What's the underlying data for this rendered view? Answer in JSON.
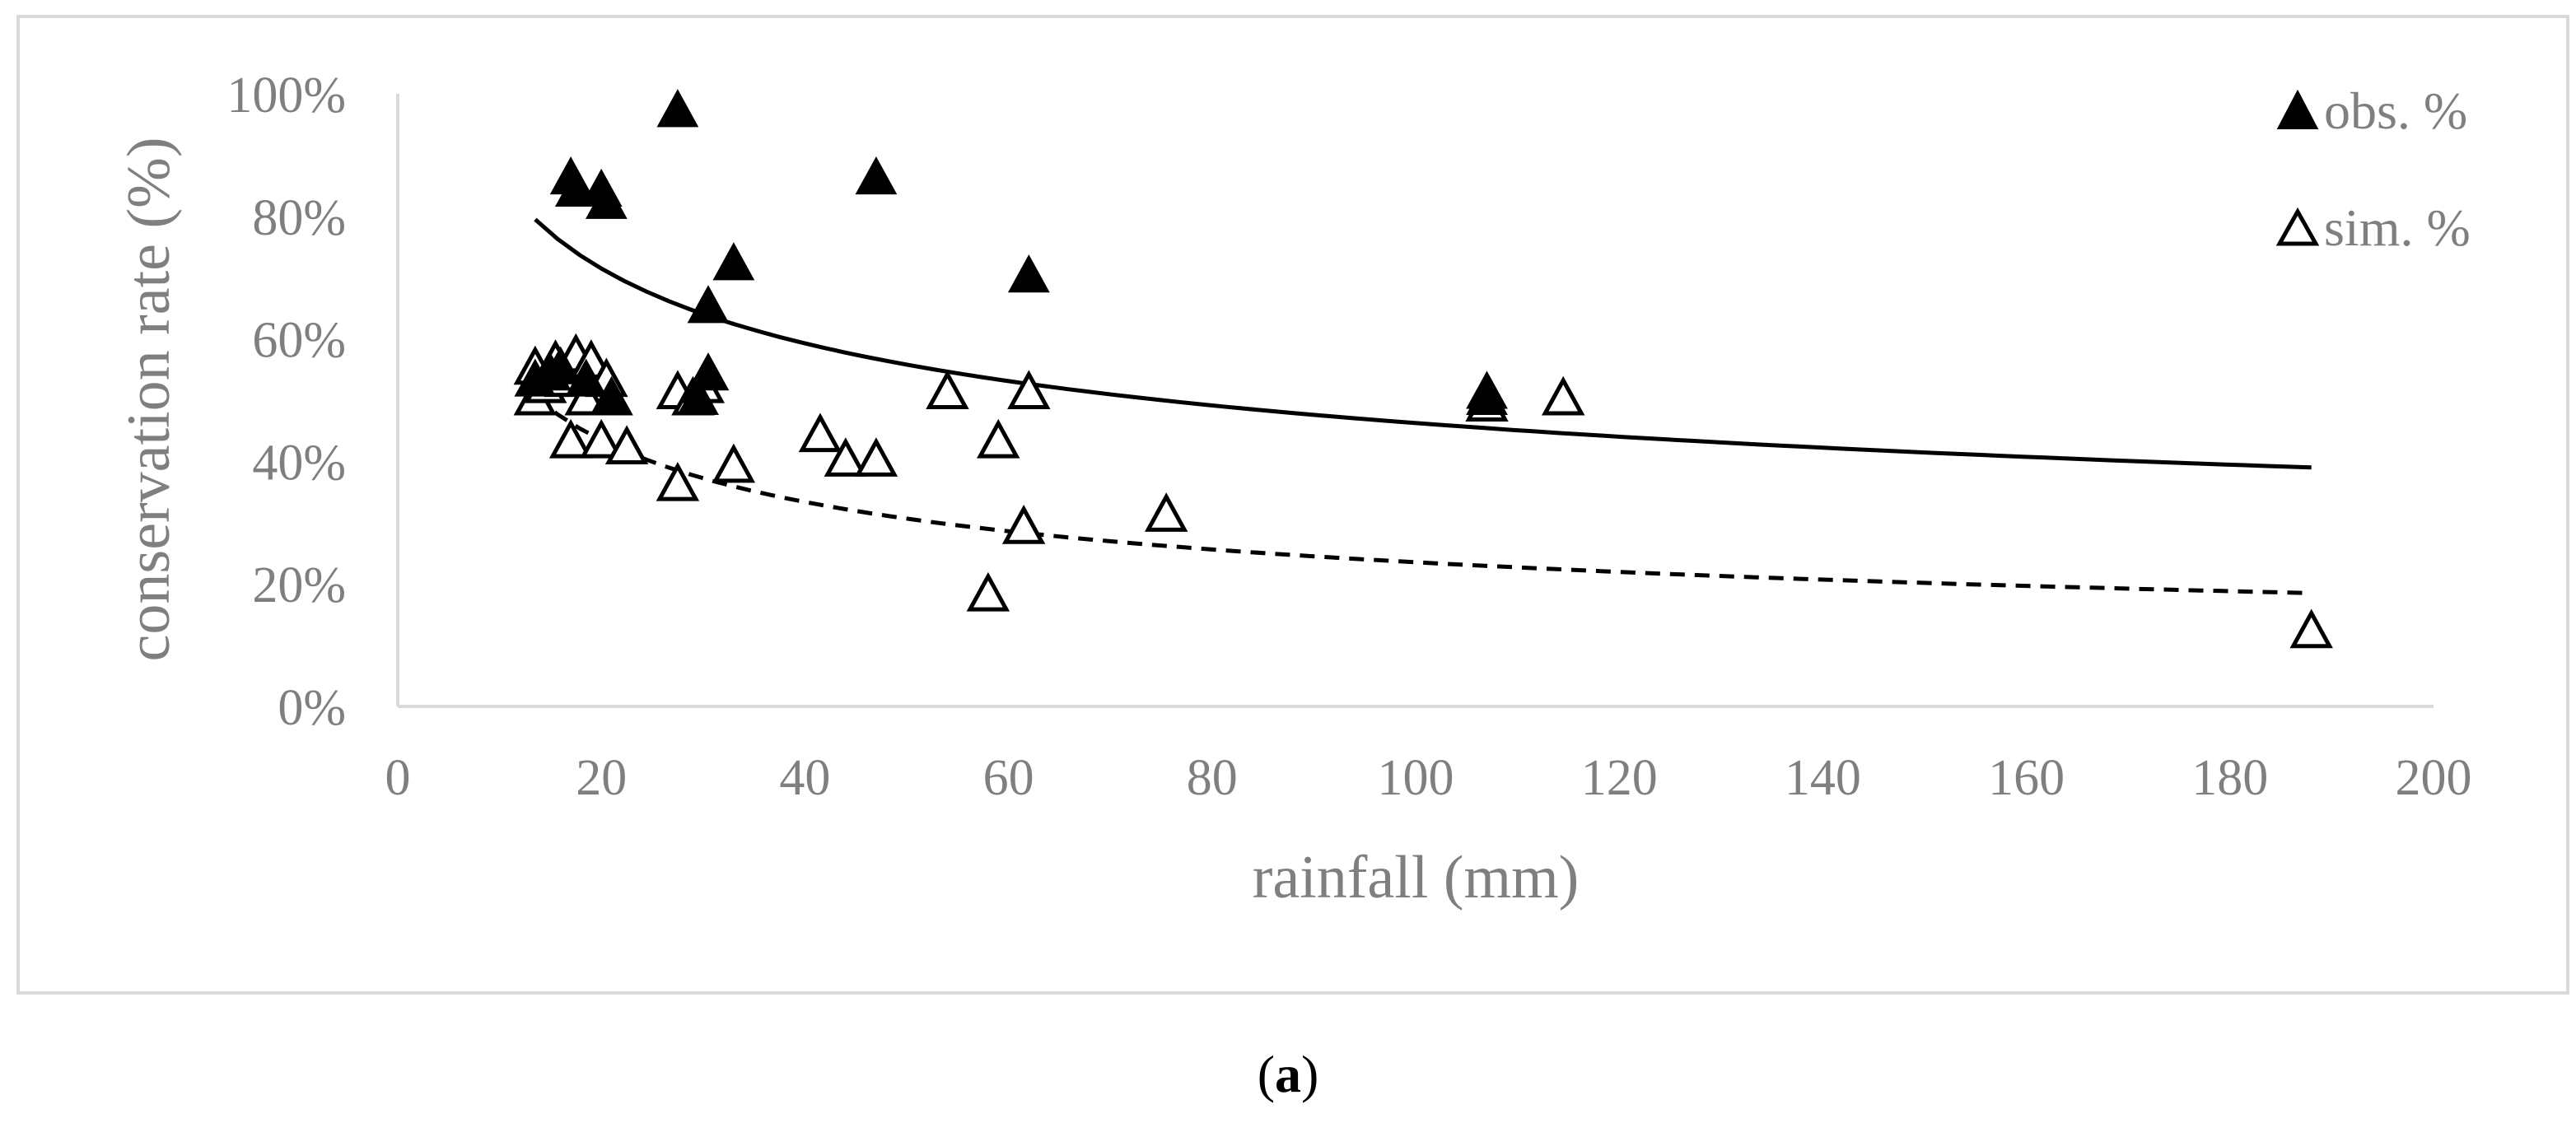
{
  "chart_data": {
    "type": "scatter",
    "title": "",
    "xlabel": "rainfall (mm)",
    "ylabel": "conservation rate (%)",
    "xlim": [
      0,
      200
    ],
    "ylim": [
      0,
      100
    ],
    "x_ticks": [
      0,
      20,
      40,
      60,
      80,
      100,
      120,
      140,
      160,
      180,
      200
    ],
    "y_ticks": [
      0,
      20,
      40,
      60,
      80,
      100
    ],
    "y_tick_labels": [
      "0%",
      "20%",
      "40%",
      "60%",
      "80%",
      "100%"
    ],
    "grid": false,
    "legend_position": "top-right",
    "series": [
      {
        "name": "obs. %",
        "marker": "filled-triangle",
        "points": [
          [
            13.5,
            53
          ],
          [
            15.0,
            54
          ],
          [
            16.0,
            55
          ],
          [
            17.0,
            86
          ],
          [
            17.5,
            84
          ],
          [
            18.5,
            53
          ],
          [
            20.0,
            84
          ],
          [
            20.5,
            82
          ],
          [
            21.0,
            50
          ],
          [
            27.5,
            97
          ],
          [
            29.5,
            50
          ],
          [
            30.5,
            54
          ],
          [
            30.5,
            65
          ],
          [
            33.0,
            72
          ],
          [
            47.0,
            86
          ],
          [
            62.0,
            70
          ],
          [
            107.0,
            51
          ],
          [
            107.0,
            50
          ]
        ],
        "trendline": {
          "kind": "power",
          "style": "solid",
          "from": [
            13.5,
            79.5
          ],
          "to": [
            188,
            39
          ]
        }
      },
      {
        "name": "sim. %",
        "marker": "open-triangle",
        "points": [
          [
            13.5,
            55
          ],
          [
            13.5,
            50
          ],
          [
            14.5,
            52
          ],
          [
            15.5,
            56
          ],
          [
            16.5,
            53
          ],
          [
            17.0,
            43
          ],
          [
            17.5,
            57
          ],
          [
            18.5,
            50
          ],
          [
            19.0,
            56
          ],
          [
            20.0,
            43
          ],
          [
            20.5,
            53
          ],
          [
            21.0,
            50
          ],
          [
            22.5,
            42
          ],
          [
            27.5,
            51
          ],
          [
            27.5,
            36
          ],
          [
            29.0,
            50
          ],
          [
            30.0,
            52
          ],
          [
            33.0,
            39
          ],
          [
            41.5,
            44
          ],
          [
            44.0,
            40
          ],
          [
            47.0,
            40
          ],
          [
            54.0,
            51
          ],
          [
            58.0,
            18
          ],
          [
            59.0,
            43
          ],
          [
            61.5,
            29
          ],
          [
            62.0,
            51
          ],
          [
            75.5,
            31
          ],
          [
            107.0,
            49
          ],
          [
            114.5,
            50
          ],
          [
            188.0,
            12
          ]
        ],
        "trendline": {
          "kind": "power",
          "style": "dashed",
          "from": [
            13.5,
            50.5
          ],
          "to": [
            188,
            18.5
          ]
        }
      }
    ]
  },
  "caption": {
    "label": "a"
  },
  "colors": {
    "axis": "#d9d9d9",
    "text": "#7f7f7f",
    "marks": "#000000"
  }
}
